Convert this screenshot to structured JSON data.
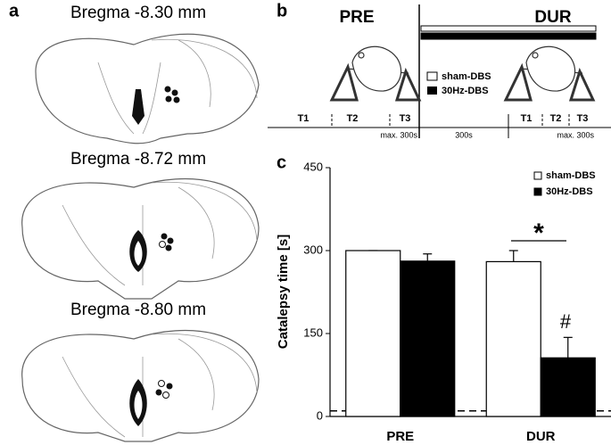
{
  "panel_a": {
    "letter": "a",
    "sections": [
      "Bregma -8.30 mm",
      "Bregma -8.72 mm",
      "Bregma -8.80 mm"
    ]
  },
  "panel_b": {
    "letter": "b",
    "phases": [
      "PRE",
      "DUR"
    ],
    "legend": [
      "sham-DBS",
      "30Hz-DBS"
    ],
    "trials_pre": [
      "T1",
      "T2",
      "T3"
    ],
    "trials_dur": [
      "T1",
      "T2",
      "T3"
    ],
    "durations": [
      "max. 300s",
      "300s",
      "max. 300s"
    ]
  },
  "chart_data": {
    "type": "bar",
    "letter": "c",
    "y_label": "Catalepsy time [s]",
    "categories": [
      "PRE",
      "DUR"
    ],
    "series": [
      {
        "name": "sham-DBS",
        "color": "#ffffff",
        "values": [
          300,
          280
        ],
        "errors": [
          0,
          20
        ]
      },
      {
        "name": "30Hz-DBS",
        "color": "#000000",
        "values": [
          281,
          106
        ],
        "errors": [
          13,
          37
        ]
      }
    ],
    "ylim": [
      0,
      450
    ],
    "yticks": [
      0,
      150,
      300,
      450
    ],
    "reference_line": 10,
    "annotations": [
      "*",
      "#"
    ]
  }
}
